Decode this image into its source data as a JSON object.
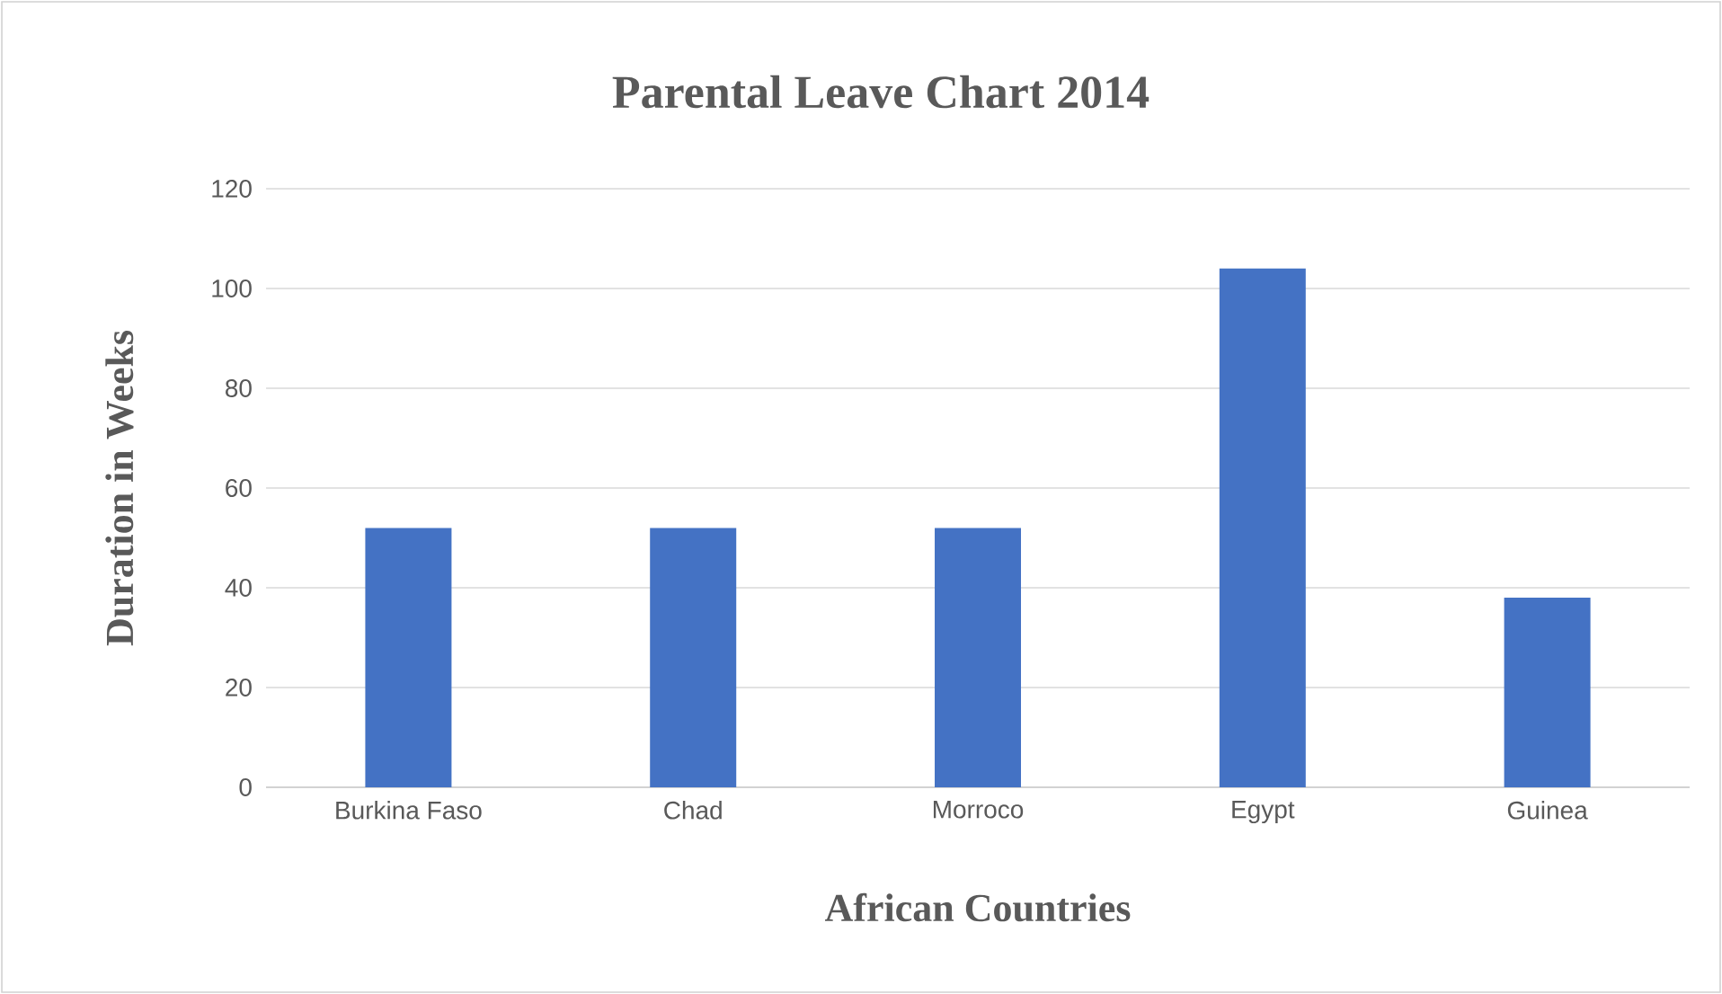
{
  "chart_data": {
    "type": "bar",
    "title": "Parental Leave Chart 2014",
    "xlabel": "African Countries",
    "ylabel": "Duration in Weeks",
    "categories": [
      "Burkina Faso",
      "Chad",
      "Morroco",
      "Egypt",
      "Guinea"
    ],
    "values": [
      52,
      52,
      52,
      104,
      38
    ],
    "color": "#4472c4",
    "ylim": [
      0,
      120
    ],
    "yticks": [
      0,
      20,
      40,
      60,
      80,
      100,
      120
    ],
    "grid": "y"
  }
}
